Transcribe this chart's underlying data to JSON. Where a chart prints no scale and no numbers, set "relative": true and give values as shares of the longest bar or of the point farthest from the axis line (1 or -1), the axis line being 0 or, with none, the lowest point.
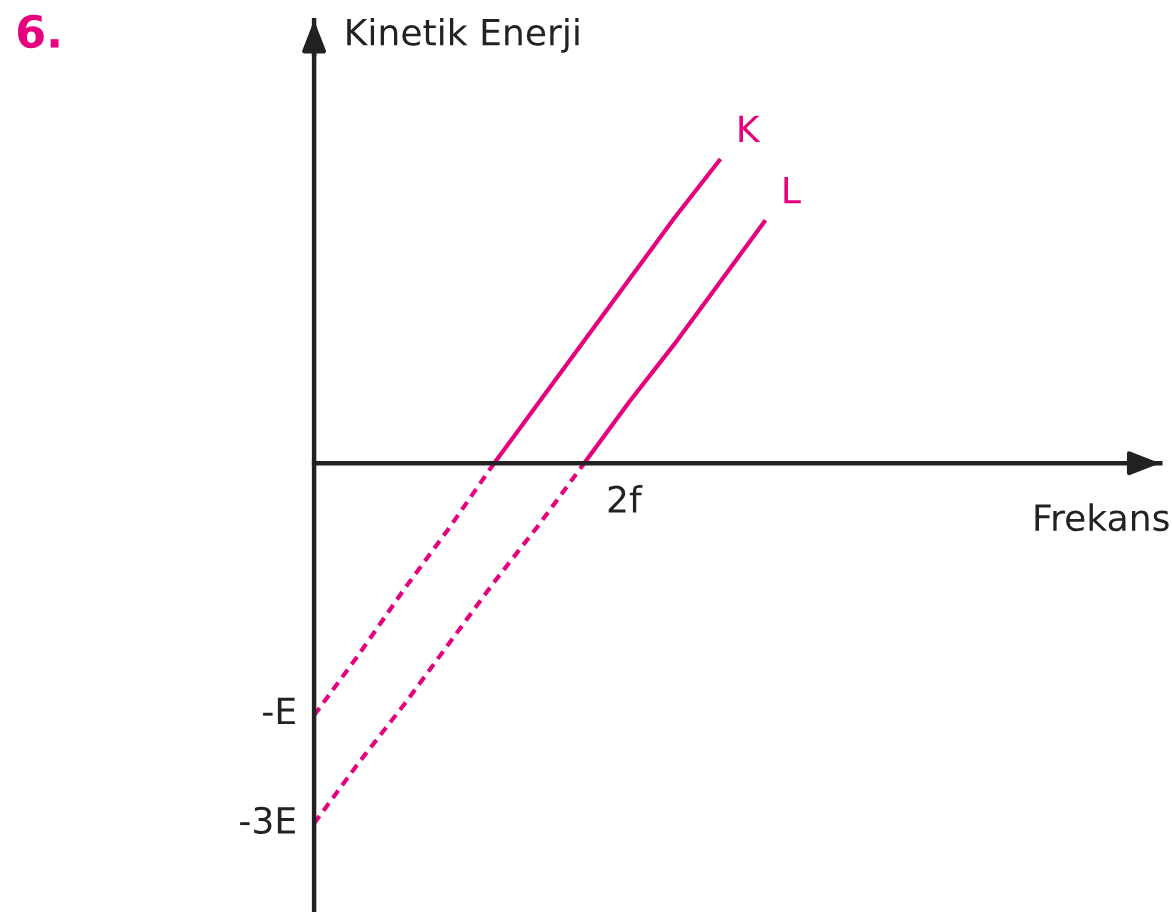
{
  "chart_data": {
    "type": "line",
    "title": "6.",
    "xlabel": "Frekans",
    "ylabel": "Kinetik Enerji",
    "relative": true,
    "categories": [
      null,
      null,
      null,
      null,
      null,
      null,
      null,
      null,
      null,
      null,
      null,
      null,
      null,
      null,
      null,
      null,
      null,
      null,
      null
    ],
    "annotations": [
      "-E",
      "-3E",
      "2f"
    ],
    "grid": false,
    "legend": false,
    "series": [
      {
        "color": "#e6007e",
        "line_style": "dashed",
        "values": [
          -0.7,
          -0.53,
          -0.35,
          -0.18,
          0,
          null,
          null,
          null,
          null,
          null,
          null,
          null,
          null,
          null,
          null,
          null,
          null,
          null,
          null
        ]
      },
      {
        "name": "K",
        "color": "#e6007e",
        "line_style": "solid",
        "values": [
          null,
          null,
          null,
          null,
          0,
          0.17,
          0.34,
          0.51,
          0.68,
          0.84,
          null,
          null,
          null,
          null,
          null,
          null,
          null,
          null,
          null
        ]
      },
      {
        "color": "#e6007e",
        "line_style": "dashed",
        "values": [
          -1,
          -0.83,
          -0.67,
          -0.5,
          -0.33,
          -0.17,
          0,
          null,
          null,
          null,
          null,
          null,
          null,
          null,
          null,
          null,
          null,
          null,
          null
        ]
      },
      {
        "name": "L",
        "color": "#e6007e",
        "line_style": "solid",
        "values": [
          null,
          null,
          null,
          null,
          null,
          null,
          0,
          0.17,
          0.33,
          0.5,
          0.67,
          null,
          null,
          null,
          null,
          null,
          null,
          null,
          null
        ]
      }
    ]
  }
}
